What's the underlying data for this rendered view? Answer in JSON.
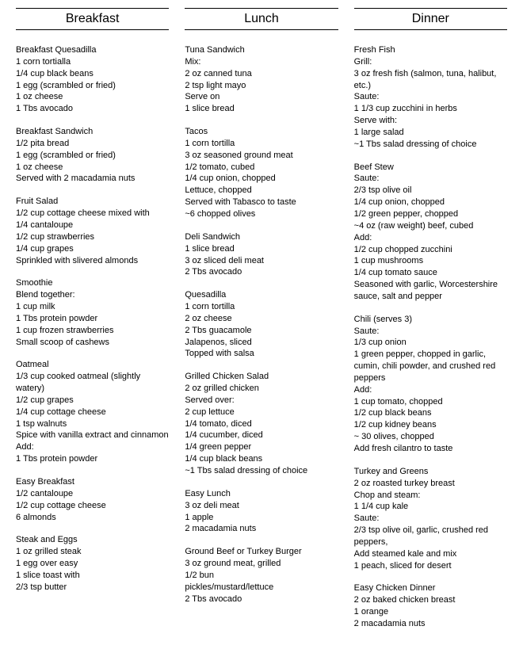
{
  "columns": [
    {
      "header": "Breakfast",
      "recipes": [
        [
          "Breakfast Quesadilla",
          "1 corn tortialla",
          "1/4 cup black beans",
          "1 egg (scrambled or fried)",
          "1 oz cheese",
          "1 Tbs avocado"
        ],
        [
          "Breakfast Sandwich",
          "1/2 pita bread",
          "1 egg (scrambled or fried)",
          "1 oz cheese",
          "Served with 2 macadamia nuts"
        ],
        [
          "Fruit Salad",
          "1/2 cup cottage cheese mixed with",
          "1/4 cantaloupe",
          "1/2 cup strawberries",
          "1/4 cup grapes",
          "Sprinkled with slivered almonds"
        ],
        [
          "Smoothie",
          "Blend together:",
          "1 cup milk",
          "1 Tbs protein powder",
          "1 cup frozen strawberries",
          "Small scoop of cashews"
        ],
        [
          "Oatmeal",
          "1/3 cup cooked oatmeal (slightly watery)",
          "1/2 cup grapes",
          "1/4 cup cottage cheese",
          "1 tsp walnuts",
          "Spice with vanilla extract and cinnamon",
          "Add:",
          "1 Tbs protein powder"
        ],
        [
          "Easy Breakfast",
          "1/2 cantaloupe",
          "1/2 cup cottage cheese",
          "6 almonds"
        ],
        [
          "Steak and Eggs",
          "1 oz grilled steak",
          "1 egg over easy",
          "1 slice toast with",
          "2/3 tsp butter"
        ]
      ]
    },
    {
      "header": "Lunch",
      "recipes": [
        [
          "Tuna Sandwich",
          "Mix:",
          "2 oz canned tuna",
          "2 tsp light mayo",
          "Serve on",
          "1 slice bread"
        ],
        [
          "Tacos",
          "1 corn tortilla",
          "3 oz seasoned ground meat",
          "1/2 tomato, cubed",
          "1/4 cup onion, chopped",
          "Lettuce, chopped",
          "Served with Tabasco to taste",
          "~6 chopped olives"
        ],
        [
          "Deli Sandwich",
          "1 slice bread",
          "3 oz sliced deli meat",
          "2 Tbs avocado"
        ],
        [
          "Quesadilla",
          "1 corn tortilla",
          "2 oz cheese",
          "2 Tbs guacamole",
          "Jalapenos, sliced",
          "Topped with salsa"
        ],
        [
          "Grilled Chicken Salad",
          "2 oz grilled chicken",
          "Served over:",
          "2 cup lettuce",
          "1/4 tomato, diced",
          "1/4 cucumber, diced",
          "1/4 green pepper",
          "1/4 cup black beans",
          "~1 Tbs salad dressing of choice"
        ],
        [
          "Easy Lunch",
          "3 oz deli meat",
          "1 apple",
          "2 macadamia nuts"
        ],
        [
          "Ground Beef or Turkey Burger",
          "3 oz ground meat, grilled",
          "1/2 bun",
          "pickles/mustard/lettuce",
          "2 Tbs avocado"
        ]
      ]
    },
    {
      "header": "Dinner",
      "recipes": [
        [
          "Fresh Fish",
          "Grill:",
          "3 oz fresh fish (salmon, tuna, halibut, etc.)",
          "Saute:",
          "1 1/3 cup zucchini in herbs",
          "Serve with:",
          "1 large salad",
          "~1 Tbs salad dressing of choice"
        ],
        [
          "Beef Stew",
          "Saute:",
          "2/3 tsp olive oil",
          "1/4 cup onion, chopped",
          "1/2 green pepper, chopped",
          "~4 oz (raw weight) beef, cubed",
          "Add:",
          "1/2 cup chopped zucchini",
          "1 cup mushrooms",
          "1/4 cup tomato sauce",
          "Seasoned with garlic, Worcestershire sauce, salt and pepper"
        ],
        [
          "Chili (serves 3)",
          "Saute:",
          "1/3 cup onion",
          "1 green pepper, chopped in garlic, cumin, chili powder, and crushed red peppers",
          "Add:",
          "1 cup tomato, chopped",
          "1/2 cup black beans",
          "1/2 cup kidney beans",
          "~ 30 olives, chopped",
          "Add fresh cilantro to taste"
        ],
        [
          "Turkey and Greens",
          "2 oz roasted turkey breast",
          "Chop and steam:",
          "1 1/4 cup kale",
          "Saute:",
          "2/3 tsp olive oil, garlic, crushed red peppers,",
          "Add steamed kale and mix",
          "1 peach, sliced for desert"
        ],
        [
          "Easy Chicken Dinner",
          "2 oz baked chicken breast",
          "1 orange",
          "2 macadamia nuts"
        ]
      ]
    }
  ]
}
